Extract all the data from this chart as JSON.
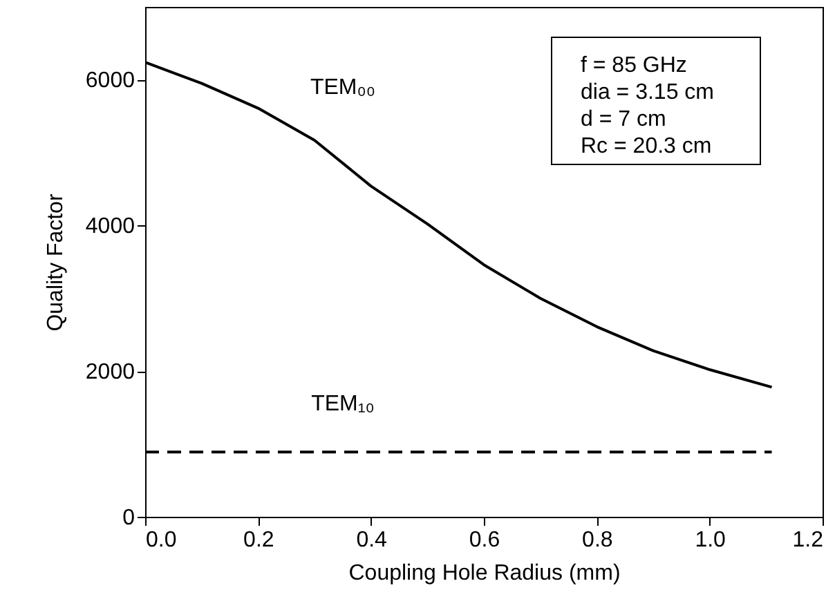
{
  "chart_data": {
    "type": "line",
    "xlabel": "Coupling Hole Radius (mm)",
    "ylabel": "Quality Factor",
    "series": [
      {
        "color": "#000000",
        "line_style": "solid",
        "x": [
          0,
          0.1,
          0.2,
          0.3,
          0.4,
          0.5,
          0.6,
          0.7,
          0.8,
          0.9,
          1.0,
          1.11
        ],
        "values": [
          6240,
          5950,
          5610,
          5170,
          4540,
          4020,
          3460,
          3000,
          2610,
          2280,
          2020,
          1780
        ]
      },
      {
        "color": "#000000",
        "line_style": "dashed",
        "x": [
          0,
          1.11
        ],
        "values": [
          890,
          890
        ]
      }
    ],
    "xlim": [
      0,
      1.2
    ],
    "xticks": [
      {
        "value": 0,
        "label": "0.0"
      },
      0.2,
      0.4,
      0.6,
      0.8,
      {
        "value": 1,
        "label": "1.0"
      },
      1.2
    ],
    "ylim": [
      0,
      7000
    ],
    "yticks": [
      0,
      2000,
      4000,
      6000
    ],
    "grid": false,
    "marker": "none",
    "annotations": [
      "TEM₀₀",
      "TEM₁₀",
      "f = 85 GHz",
      "dia = 3.15 cm",
      "d = 7 cm",
      "Rc = 20.3 cm"
    ]
  }
}
